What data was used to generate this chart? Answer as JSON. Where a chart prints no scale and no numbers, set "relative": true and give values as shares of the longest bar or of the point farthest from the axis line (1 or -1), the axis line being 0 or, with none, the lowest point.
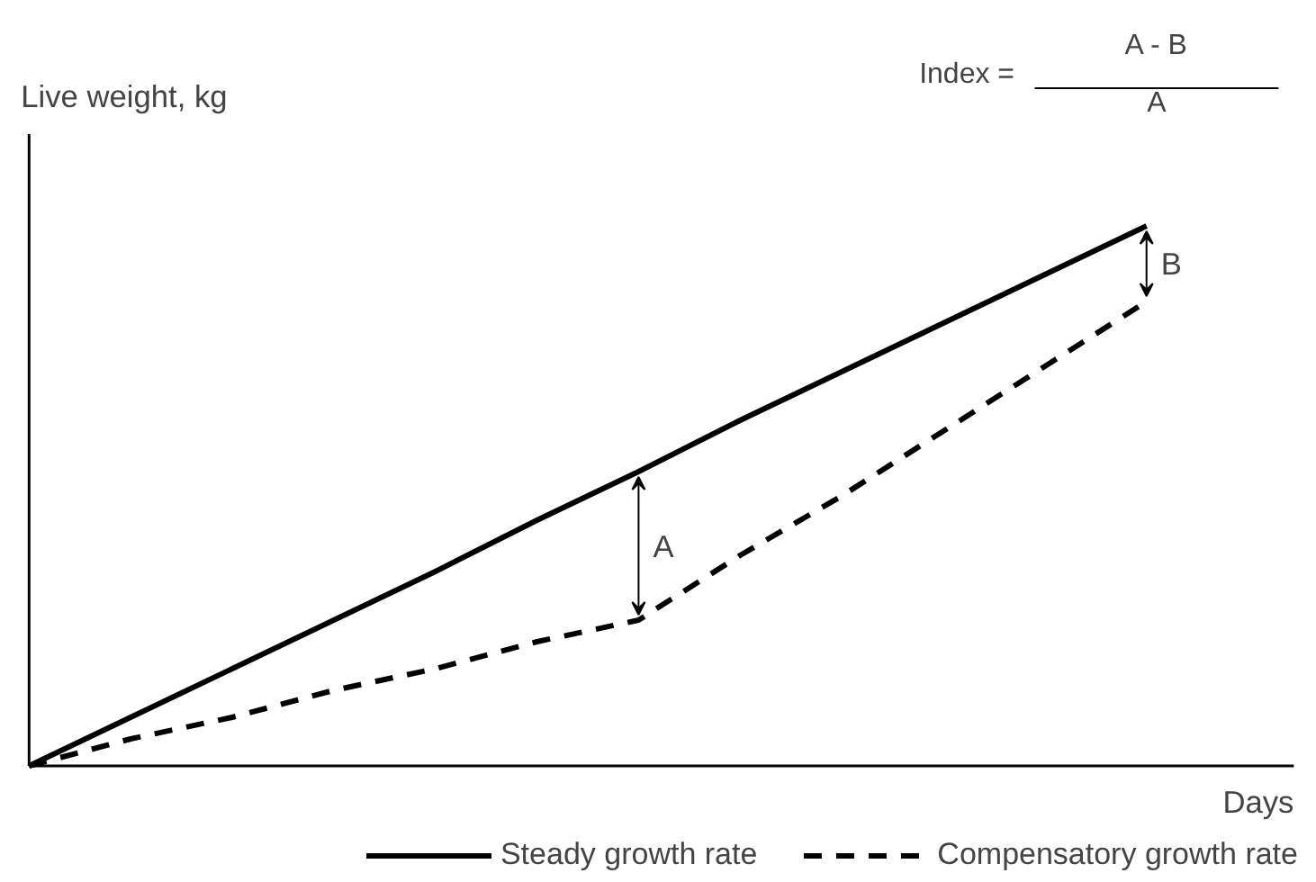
{
  "chart_data": {
    "type": "line",
    "relative": true,
    "ylabel": "Live weight, kg",
    "xlabel": "Days",
    "categories": [
      null,
      null,
      null,
      null,
      null,
      null,
      null,
      null,
      null,
      null,
      null,
      null
    ],
    "series": [
      {
        "name": "Steady growth rate",
        "color": "#000000",
        "line_style": "solid",
        "values": [
          0,
          0.09,
          0.18,
          0.27,
          0.36,
          0.455,
          0.545,
          0.64,
          0.73,
          0.82,
          0.91,
          1
        ]
      },
      {
        "name": "Compensatory growth rate",
        "color": "#000000",
        "line_style": "dashed",
        "values": [
          0,
          0.05,
          0.09,
          0.14,
          0.18,
          0.23,
          0.27,
          0.39,
          0.5,
          0.62,
          0.74,
          0.86
        ]
      }
    ],
    "annotations": [
      "A",
      "B",
      "Index =",
      "A - B",
      "A"
    ],
    "legend": "bottom"
  }
}
